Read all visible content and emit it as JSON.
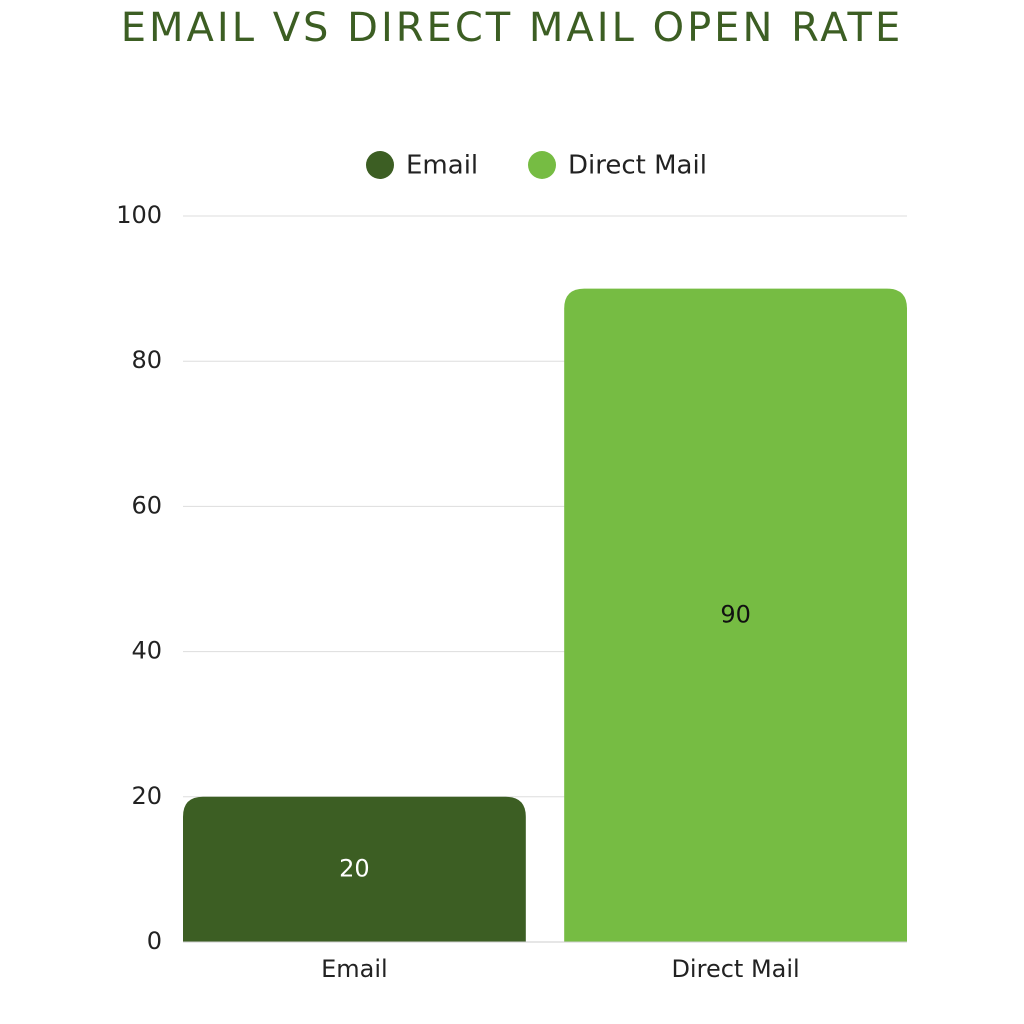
{
  "chart_data": {
    "type": "bar",
    "title": "EMAIL VS DIRECT MAIL OPEN RATE",
    "categories": [
      "Email",
      "Direct Mail"
    ],
    "values": [
      20,
      90
    ],
    "colors": [
      "#3c5e23",
      "#76bc43"
    ],
    "ylim": [
      0,
      100
    ],
    "yticks": [
      0,
      20,
      40,
      60,
      80,
      100
    ],
    "grid": true,
    "legend": "top"
  }
}
